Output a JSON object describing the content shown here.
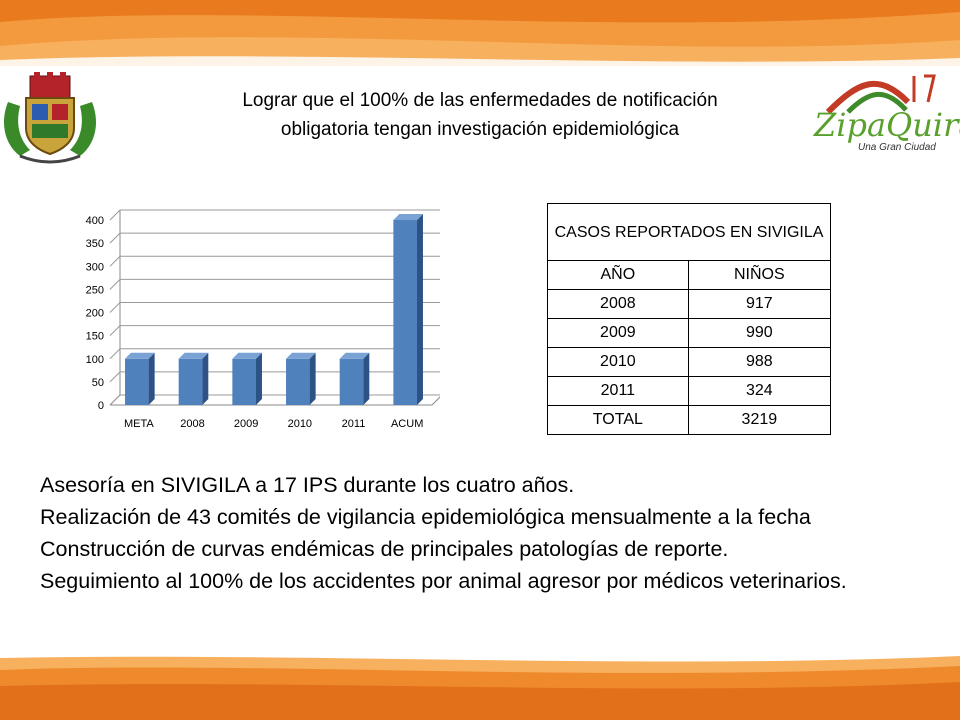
{
  "title": {
    "line1": "Lograr que el 100% de las enfermedades de notificación",
    "line2": "obligatoria tengan  investigación epidemiológica"
  },
  "logo_right": {
    "wordmark": "ZipaQuirá",
    "tagline": "Una Gran Ciudad"
  },
  "chart_data": {
    "type": "bar",
    "categories": [
      "META",
      "2008",
      "2009",
      "2010",
      "2011",
      "ACUM"
    ],
    "values": [
      100,
      100,
      100,
      100,
      100,
      400
    ],
    "yticks": [
      0,
      50,
      100,
      150,
      200,
      250,
      300,
      350,
      400
    ],
    "ylim": [
      0,
      400
    ],
    "grid": true,
    "color": "#4f81bd"
  },
  "table": {
    "header": "CASOS REPORTADOS EN SIVIGILA",
    "columns": [
      "AÑO",
      "NIÑOS"
    ],
    "rows": [
      [
        "2008",
        "917"
      ],
      [
        "2009",
        "990"
      ],
      [
        "2010",
        "988"
      ],
      [
        "2011",
        "324"
      ],
      [
        "TOTAL",
        "3219"
      ]
    ]
  },
  "bullets": [
    "Asesoría en SIVIGILA  a 17 IPS durante los cuatro años.",
    "Realización de 43 comités de vigilancia epidemiológica mensualmente a la fecha",
    "Construcción de curvas endémicas de principales patologías de reporte.",
    "Seguimiento al 100% de los accidentes por animal agresor por médicos veterinarios."
  ],
  "theme": {
    "orange": "#e8741c",
    "orange_light": "#f6a04a",
    "bar": "#4f81bd"
  }
}
